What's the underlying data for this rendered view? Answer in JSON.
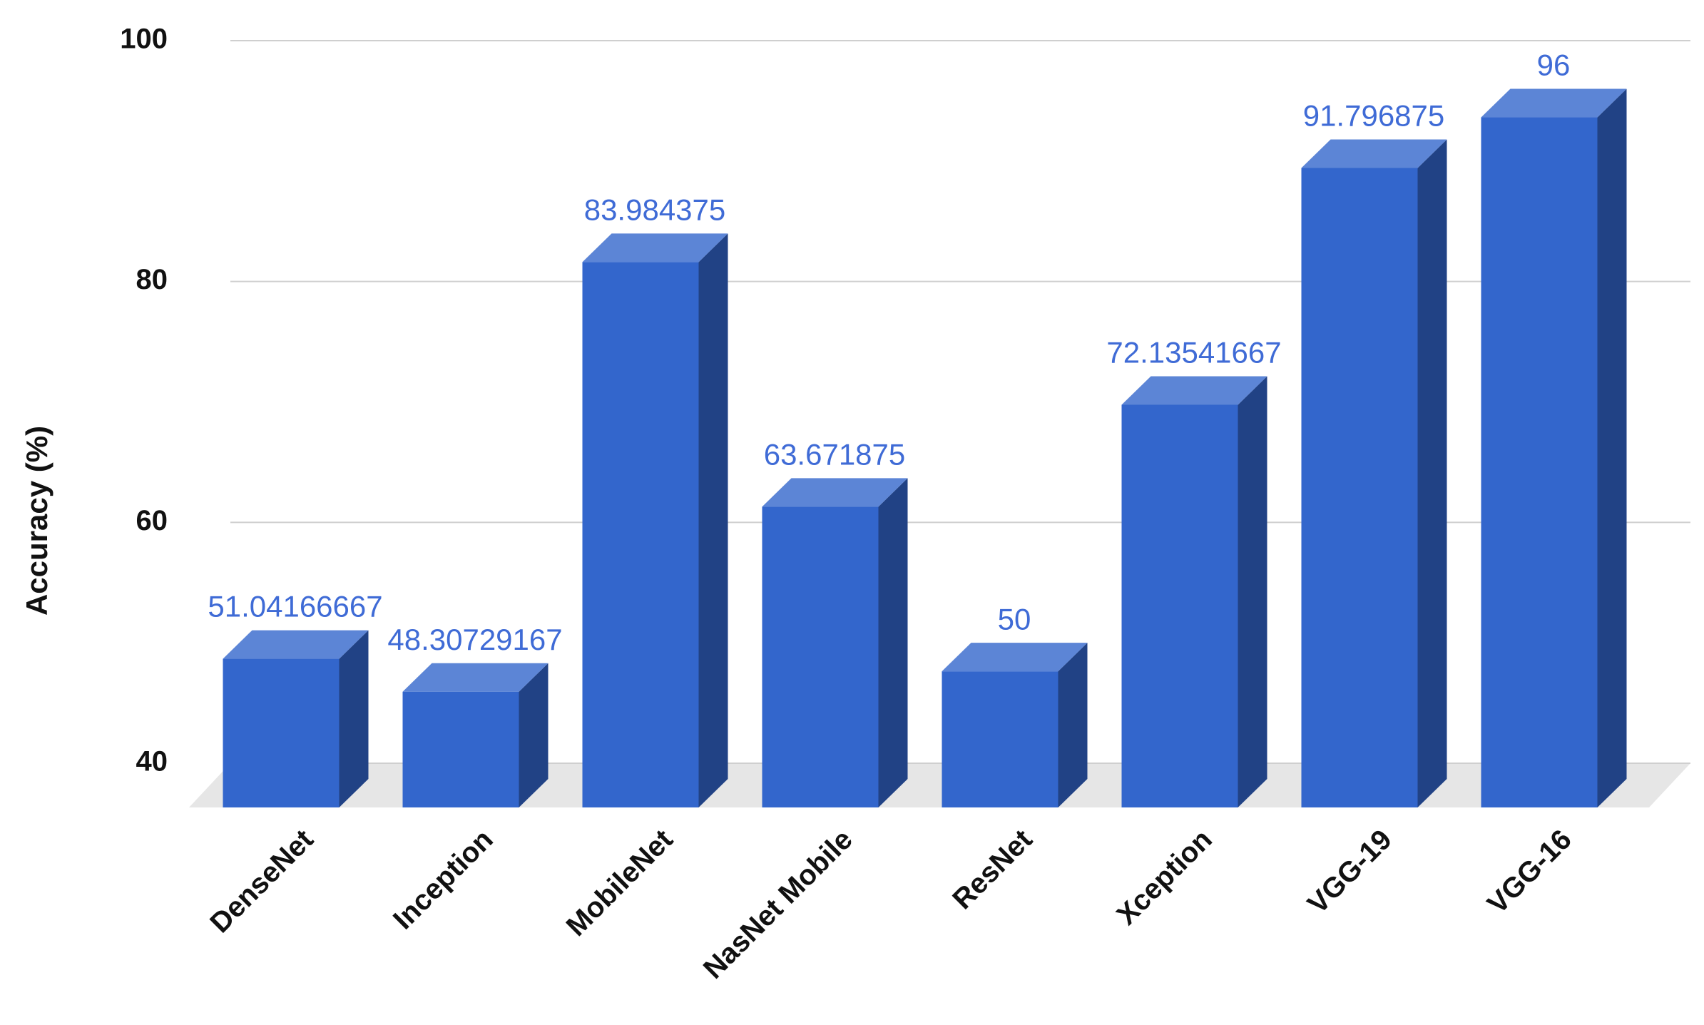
{
  "chart_data": {
    "type": "bar3d",
    "y_label": "Accuracy (%)",
    "categories": [
      "DenseNet",
      "Inception",
      "MobileNet",
      "NasNet Mobile",
      "ResNet",
      "Xception",
      "VGG-19",
      "VGG-16"
    ],
    "values": [
      51.04166667,
      48.30729167,
      83.984375,
      63.671875,
      50,
      72.13541667,
      91.796875,
      96
    ],
    "color": "#3366cc",
    "ylim": [
      40,
      100
    ],
    "yticks": [
      40,
      60,
      80,
      100
    ],
    "grid": true
  }
}
